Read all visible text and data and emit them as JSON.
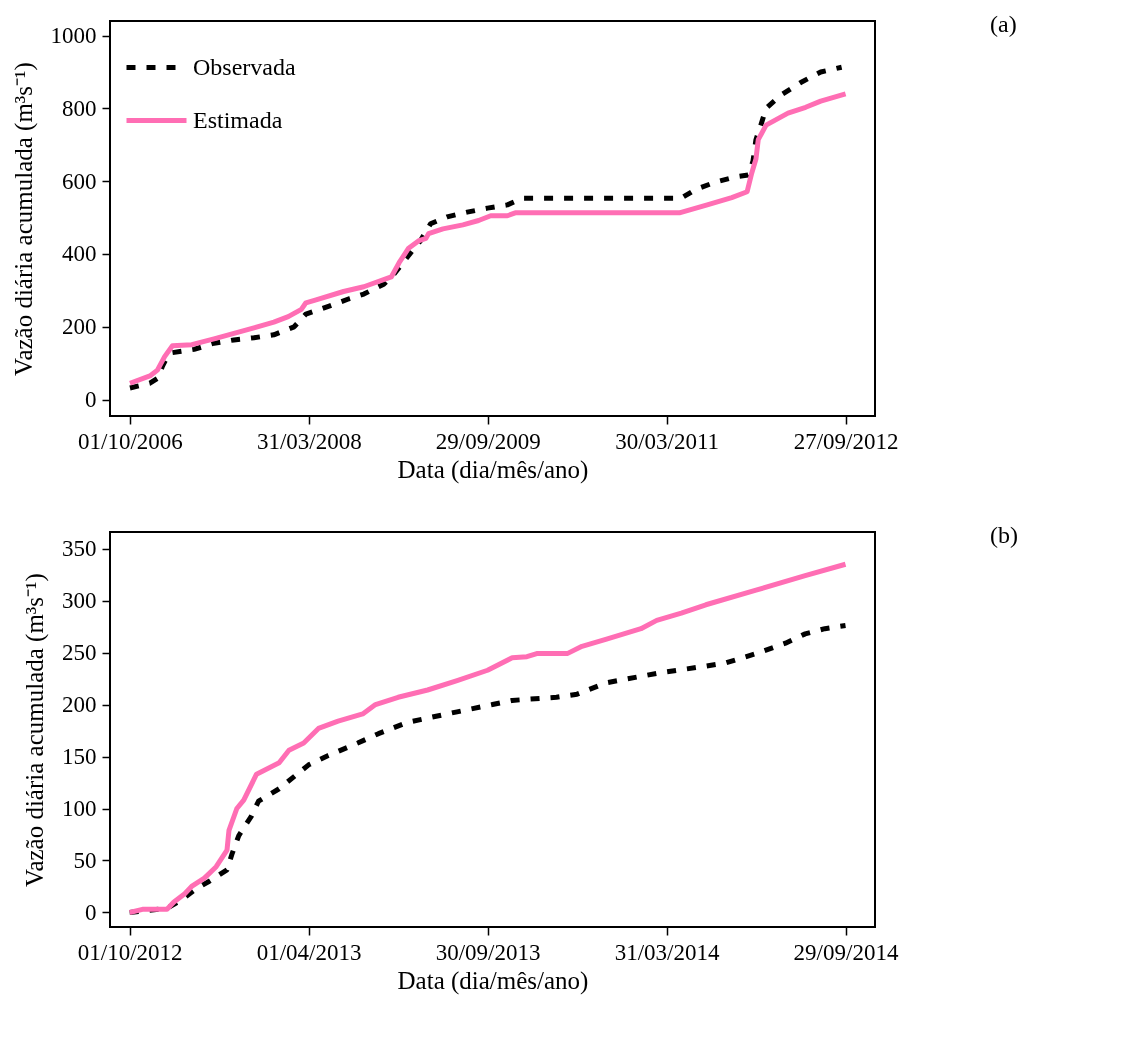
{
  "chart_data": [
    {
      "type": "line",
      "xlabel": "Data (dia/mês/ano)",
      "ylabel": "Vazão diária acumulada (m³s⁻¹)",
      "annotations": [
        "(a)"
      ],
      "xlim": [
        "2006-08-01",
        "2012-12-26"
      ],
      "xticks": [
        {
          "value": "2006-10-01",
          "label": "01/10/2006"
        },
        {
          "value": "2008-03-31",
          "label": "31/03/2008"
        },
        {
          "value": "2009-09-29",
          "label": "29/09/2009"
        },
        {
          "value": "2011-03-30",
          "label": "30/03/2011"
        },
        {
          "value": "2012-09-27",
          "label": "27/09/2012"
        }
      ],
      "ylim": [
        -45,
        1040
      ],
      "yticks": [
        0,
        200,
        400,
        600,
        800,
        1000
      ],
      "grid": false,
      "legend": "top left",
      "series": [
        {
          "name": "Observada",
          "color": "#000000",
          "line_style": "dashed",
          "x": [
            "2006-10-01",
            "2006-12-01",
            "2006-12-24",
            "2007-01-08",
            "2007-01-23",
            "2007-02-08",
            "2007-04-15",
            "2007-06-15",
            "2007-08-15",
            "2007-10-15",
            "2007-12-15",
            "2008-02-15",
            "2008-03-22",
            "2008-06-01",
            "2008-08-01",
            "2008-09-15",
            "2008-11-15",
            "2008-12-15",
            "2009-01-30",
            "2009-03-07",
            "2009-04-07",
            "2009-05-28",
            "2009-07-28",
            "2009-09-28",
            "2009-11-28",
            "2010-01-13",
            "2011-05-13",
            "2011-06-28",
            "2011-08-28",
            "2011-10-28",
            "2011-12-04",
            "2011-12-19",
            "2011-12-28",
            "2012-01-12",
            "2012-01-28",
            "2012-03-13",
            "2012-05-13",
            "2012-07-13",
            "2012-09-15"
          ],
          "values": [
            32,
            45,
            58,
            91,
            118,
            129,
            138,
            155,
            164,
            170,
            178,
            200,
            235,
            257,
            277,
            290,
            317,
            343,
            396,
            436,
            483,
            502,
            515,
            526,
            535,
            553,
            553,
            578,
            598,
            612,
            617,
            655,
            714,
            754,
            800,
            836,
            871,
            900,
            913
          ]
        },
        {
          "name": "Estimada",
          "color": "#ff6eb4",
          "line_style": "solid",
          "x": [
            "2006-10-01",
            "2006-12-01",
            "2006-12-24",
            "2007-01-15",
            "2007-02-08",
            "2007-04-08",
            "2007-06-15",
            "2007-08-15",
            "2007-10-15",
            "2007-12-15",
            "2008-01-28",
            "2008-03-08",
            "2008-03-22",
            "2008-04-22",
            "2008-07-15",
            "2008-09-15",
            "2008-12-08",
            "2009-01-01",
            "2009-01-30",
            "2009-03-01",
            "2009-03-24",
            "2009-04-01",
            "2009-05-15",
            "2009-07-15",
            "2009-09-01",
            "2009-10-08",
            "2009-11-28",
            "2009-12-22",
            "2011-05-08",
            "2011-08-01",
            "2011-10-15",
            "2011-12-01",
            "2011-12-15",
            "2011-12-28",
            "2012-01-04",
            "2012-01-28",
            "2012-04-04",
            "2012-05-28",
            "2012-07-13",
            "2012-09-27"
          ],
          "values": [
            45,
            65,
            81,
            118,
            148,
            151,
            167,
            182,
            197,
            213,
            228,
            248,
            266,
            274,
            297,
            310,
            337,
            376,
            416,
            436,
            443,
            456,
            469,
            480,
            492,
            505,
            505,
            513,
            513,
            535,
            555,
            571,
            622,
            661,
            714,
            754,
            787,
            803,
            820,
            840
          ]
        }
      ]
    },
    {
      "type": "line",
      "xlabel": "Data (dia/mês/ano)",
      "ylabel": "Vazão diária acumulada (m³s⁻¹)",
      "annotations": [
        "(b)"
      ],
      "xlim": [
        "2012-09-11",
        "2014-10-29"
      ],
      "xticks": [
        {
          "value": "2012-10-01",
          "label": "01/10/2012"
        },
        {
          "value": "2013-04-01",
          "label": "01/04/2013"
        },
        {
          "value": "2013-09-30",
          "label": "30/09/2013"
        },
        {
          "value": "2014-03-31",
          "label": "31/03/2014"
        },
        {
          "value": "2014-09-29",
          "label": "29/09/2014"
        }
      ],
      "ylim": [
        -14,
        366
      ],
      "yticks": [
        0,
        50,
        100,
        150,
        200,
        250,
        300,
        350
      ],
      "grid": false,
      "series": [
        {
          "color": "#000000",
          "line_style": "dashed",
          "x": [
            "2012-10-01",
            "2012-10-21",
            "2012-11-08",
            "2012-11-21",
            "2012-12-08",
            "2012-12-21",
            "2013-01-08",
            "2013-01-13",
            "2013-01-20",
            "2013-02-02",
            "2013-02-09",
            "2013-03-02",
            "2013-04-01",
            "2013-04-21",
            "2013-05-21",
            "2013-06-11",
            "2013-07-11",
            "2013-08-30",
            "2013-10-05",
            "2013-10-25",
            "2013-12-09",
            "2013-12-30",
            "2014-01-29",
            "2014-03-21",
            "2014-05-10",
            "2014-05-30",
            "2014-06-30",
            "2014-07-30",
            "2014-08-19",
            "2014-09-08",
            "2014-09-29"
          ],
          "values": [
            0,
            2,
            4,
            11,
            23,
            30,
            41,
            56,
            74,
            93,
            107,
            119,
            142,
            151,
            163,
            172,
            183,
            193,
            200,
            204,
            207,
            210,
            221,
            230,
            237,
            240,
            249,
            259,
            268,
            273,
            276
          ]
        },
        {
          "color": "#ff6eb4",
          "line_style": "solid",
          "x": [
            "2012-10-01",
            "2012-10-14",
            "2012-11-08",
            "2012-11-15",
            "2012-11-26",
            "2012-12-03",
            "2012-12-16",
            "2012-12-28",
            "2013-01-08",
            "2013-01-10",
            "2013-01-18",
            "2013-01-25",
            "2013-02-07",
            "2013-03-02",
            "2013-03-12",
            "2013-03-27",
            "2013-04-11",
            "2013-05-01",
            "2013-05-26",
            "2013-06-08",
            "2013-07-01",
            "2013-07-31",
            "2013-08-30",
            "2013-09-30",
            "2013-10-25",
            "2013-11-09",
            "2013-11-19",
            "2013-12-20",
            "2014-01-04",
            "2014-01-29",
            "2014-03-05",
            "2014-03-21",
            "2014-04-15",
            "2014-05-10",
            "2014-06-30",
            "2014-08-19",
            "2014-09-29"
          ],
          "values": [
            0,
            3,
            3,
            10,
            18,
            25,
            33,
            44,
            60,
            79,
            100,
            108,
            133,
            144,
            156,
            163,
            177,
            184,
            191,
            200,
            207,
            214,
            223,
            233,
            245,
            246,
            249,
            249,
            256,
            263,
            273,
            281,
            288,
            296,
            310,
            324,
            335
          ]
        }
      ]
    }
  ]
}
